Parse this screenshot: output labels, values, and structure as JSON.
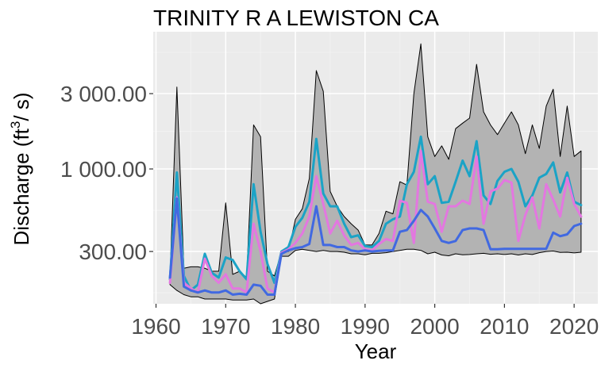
{
  "chart_data": {
    "type": "line",
    "title": "TRINITY R A LEWISTON CA",
    "xlabel": "Year",
    "ylabel": "Discharge (ft³/s)",
    "ylabel_parts": {
      "pre": "Discharge (ft",
      "sup": "3",
      "post": "/ s)"
    },
    "y_scale": "log10",
    "xlim": [
      1959.6,
      2023.4
    ],
    "ylim": [
      140,
      7400
    ],
    "x_ticks": [
      1960,
      1970,
      1980,
      1990,
      2000,
      2010,
      2020
    ],
    "x_tick_labels": [
      "1960",
      "1970",
      "1980",
      "1990",
      "2000",
      "2010",
      "2020"
    ],
    "y_ticks": [
      300,
      1000,
      3000
    ],
    "y_tick_labels": [
      "300.00",
      "1 000.00",
      "3 000.00"
    ],
    "grid": true,
    "legend": "none",
    "colors": {
      "panel": "#ebebeb",
      "grid_major": "#ffffff",
      "grid_minor": "#f2f2f2",
      "ribbon_fill": "#b3b3b3",
      "ribbon_stroke": "#000000",
      "series_cyan": "#1ba3c6",
      "series_pink": "#e377e0",
      "series_blue": "#4169e1"
    },
    "x": [
      1962,
      1963,
      1964,
      1965,
      1966,
      1967,
      1968,
      1969,
      1970,
      1971,
      1972,
      1973,
      1974,
      1975,
      1976,
      1977,
      1978,
      1979,
      1980,
      1981,
      1982,
      1983,
      1984,
      1985,
      1986,
      1987,
      1988,
      1989,
      1990,
      1991,
      1992,
      1993,
      1994,
      1995,
      1996,
      1997,
      1998,
      1999,
      2000,
      2001,
      2002,
      2003,
      2004,
      2005,
      2006,
      2007,
      2008,
      2009,
      2010,
      2011,
      2012,
      2013,
      2014,
      2015,
      2016,
      2017,
      2018,
      2019,
      2020,
      2021
    ],
    "ribbon_upper": [
      205,
      3300,
      235,
      240,
      240,
      235,
      225,
      225,
      610,
      215,
      225,
      205,
      1900,
      1600,
      225,
      210,
      300,
      300,
      480,
      560,
      870,
      4200,
      3100,
      720,
      580,
      500,
      450,
      410,
      330,
      330,
      390,
      540,
      520,
      830,
      790,
      3000,
      6200,
      1600,
      1200,
      1400,
      1150,
      1800,
      1950,
      2100,
      4600,
      2300,
      1900,
      1650,
      1950,
      2300,
      1900,
      1250,
      1900,
      1350,
      2500,
      3200,
      1200,
      2500,
      1200,
      1300
    ],
    "ribbon_lower": [
      185,
      170,
      160,
      155,
      155,
      150,
      150,
      150,
      150,
      148,
      148,
      148,
      150,
      140,
      145,
      150,
      280,
      280,
      305,
      310,
      305,
      300,
      305,
      300,
      300,
      297,
      290,
      290,
      286,
      292,
      292,
      295,
      300,
      305,
      310,
      310,
      305,
      290,
      297,
      285,
      282,
      290,
      286,
      287,
      290,
      292,
      288,
      290,
      287,
      290,
      285,
      290,
      287,
      295,
      300,
      302,
      296,
      297,
      294,
      297
    ],
    "series": [
      {
        "color": "#1ba3c6",
        "values": [
          200,
          950,
          210,
          170,
          185,
          290,
          220,
          205,
          275,
          265,
          225,
          200,
          800,
          400,
          250,
          190,
          300,
          320,
          430,
          490,
          620,
          1550,
          700,
          580,
          580,
          450,
          370,
          380,
          325,
          320,
          350,
          450,
          480,
          500,
          800,
          960,
          1600,
          800,
          900,
          610,
          620,
          830,
          1130,
          900,
          1500,
          680,
          600,
          840,
          960,
          1000,
          830,
          580,
          680,
          880,
          930,
          1100,
          710,
          950,
          620,
          590
        ]
      },
      {
        "color": "#e377e0",
        "values": [
          190,
          660,
          190,
          175,
          165,
          270,
          210,
          190,
          215,
          175,
          175,
          165,
          450,
          300,
          175,
          165,
          295,
          310,
          340,
          390,
          500,
          900,
          600,
          390,
          470,
          380,
          330,
          340,
          310,
          305,
          335,
          360,
          350,
          630,
          610,
          340,
          1300,
          620,
          600,
          400,
          580,
          580,
          630,
          600,
          1200,
          450,
          720,
          750,
          850,
          820,
          350,
          510,
          660,
          420,
          800,
          640,
          500,
          880,
          600,
          500
        ]
      },
      {
        "color": "#4169e1",
        "values": [
          205,
          650,
          180,
          170,
          165,
          170,
          165,
          165,
          170,
          160,
          162,
          160,
          185,
          182,
          160,
          160,
          290,
          305,
          315,
          320,
          335,
          580,
          330,
          330,
          320,
          320,
          305,
          300,
          305,
          300,
          303,
          305,
          305,
          400,
          410,
          470,
          550,
          500,
          420,
          350,
          340,
          350,
          410,
          420,
          420,
          410,
          310,
          310,
          312,
          312,
          312,
          312,
          312,
          312,
          312,
          395,
          375,
          385,
          435,
          450
        ]
      }
    ]
  }
}
